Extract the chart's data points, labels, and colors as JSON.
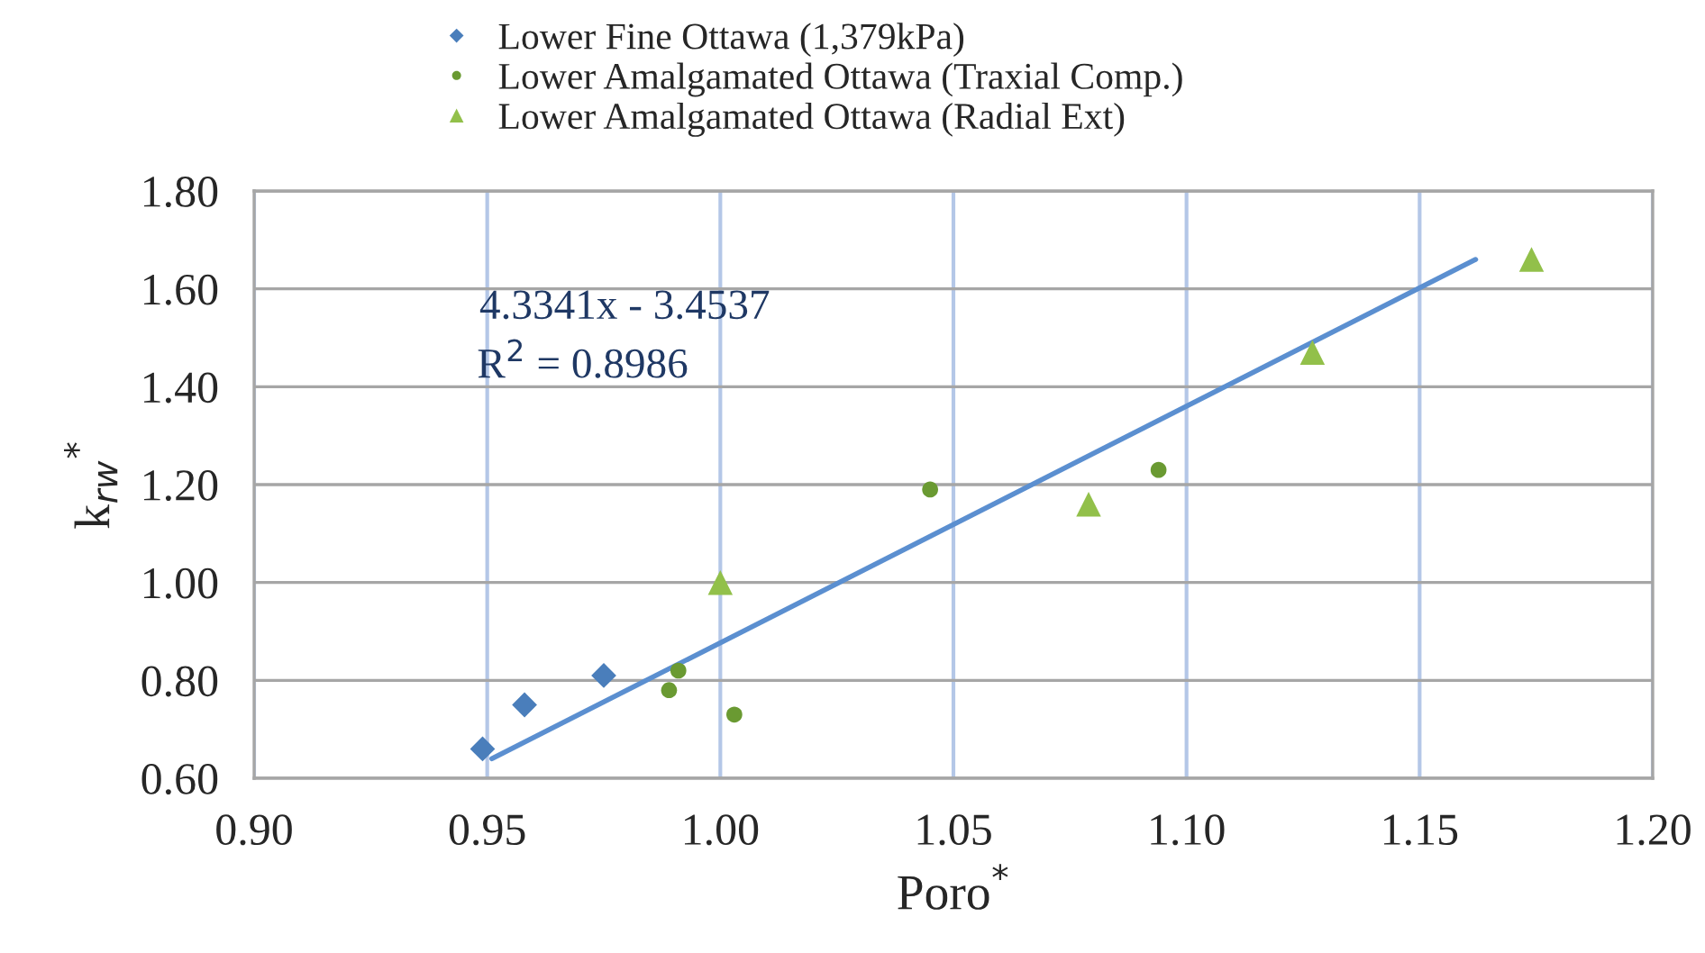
{
  "chart_data": {
    "type": "scatter",
    "xlabel": "Poro$^{*}$",
    "ylabel": "k$_{rw}$$^{*}$",
    "series": [
      {
        "name": "Lower Fine Ottawa (1,379kPa)",
        "color": "#4a7ebb",
        "marker": "diamond",
        "x": [
          0.949,
          0.958,
          0.975
        ],
        "values": [
          0.66,
          0.75,
          0.81
        ]
      },
      {
        "name": "Lower Amalgamated Ottawa (Traxial Comp.)",
        "color": "#6a9a32",
        "marker": "circle",
        "x": [
          0.989,
          0.991,
          1.003,
          1.045,
          1.094
        ],
        "values": [
          0.78,
          0.82,
          0.73,
          1.19,
          1.23
        ]
      },
      {
        "name": "Lower Amalgamated Ottawa (Radial Ext)",
        "color": "#92c04a",
        "marker": "triangle",
        "x": [
          1.0,
          1.079,
          1.127,
          1.174
        ],
        "values": [
          1.0,
          1.16,
          1.47,
          1.66
        ]
      },
      {
        "type": "line",
        "color": "#5b8fd0",
        "x": [
          0.951,
          1.162
        ],
        "values": [
          0.64,
          1.66
        ]
      }
    ],
    "xlim": [
      0.9,
      1.2
    ],
    "xticks": [
      {
        "value": 0.9,
        "label": "0.90"
      },
      {
        "value": 0.95,
        "label": "0.95"
      },
      {
        "value": 1.0,
        "label": "1.00"
      },
      {
        "value": 1.05,
        "label": "1.05"
      },
      {
        "value": 1.1,
        "label": "1.10"
      },
      {
        "value": 1.15,
        "label": "1.15"
      },
      {
        "value": 1.2,
        "label": "1.20"
      }
    ],
    "ylim": [
      0.6,
      1.8
    ],
    "yticks": [
      {
        "value": 0.6,
        "label": "0.60"
      },
      {
        "value": 0.8,
        "label": "0.80"
      },
      {
        "value": 1.0,
        "label": "1.00"
      },
      {
        "value": 1.2,
        "label": "1.20"
      },
      {
        "value": 1.4,
        "label": "1.40"
      },
      {
        "value": 1.6,
        "label": "1.60"
      },
      {
        "value": 1.8,
        "label": "1.80"
      }
    ],
    "grid": true,
    "legend": "top",
    "annotations": [
      "4.3341x - 3.4537",
      "R$^{2}$ = 0.8986"
    ]
  }
}
